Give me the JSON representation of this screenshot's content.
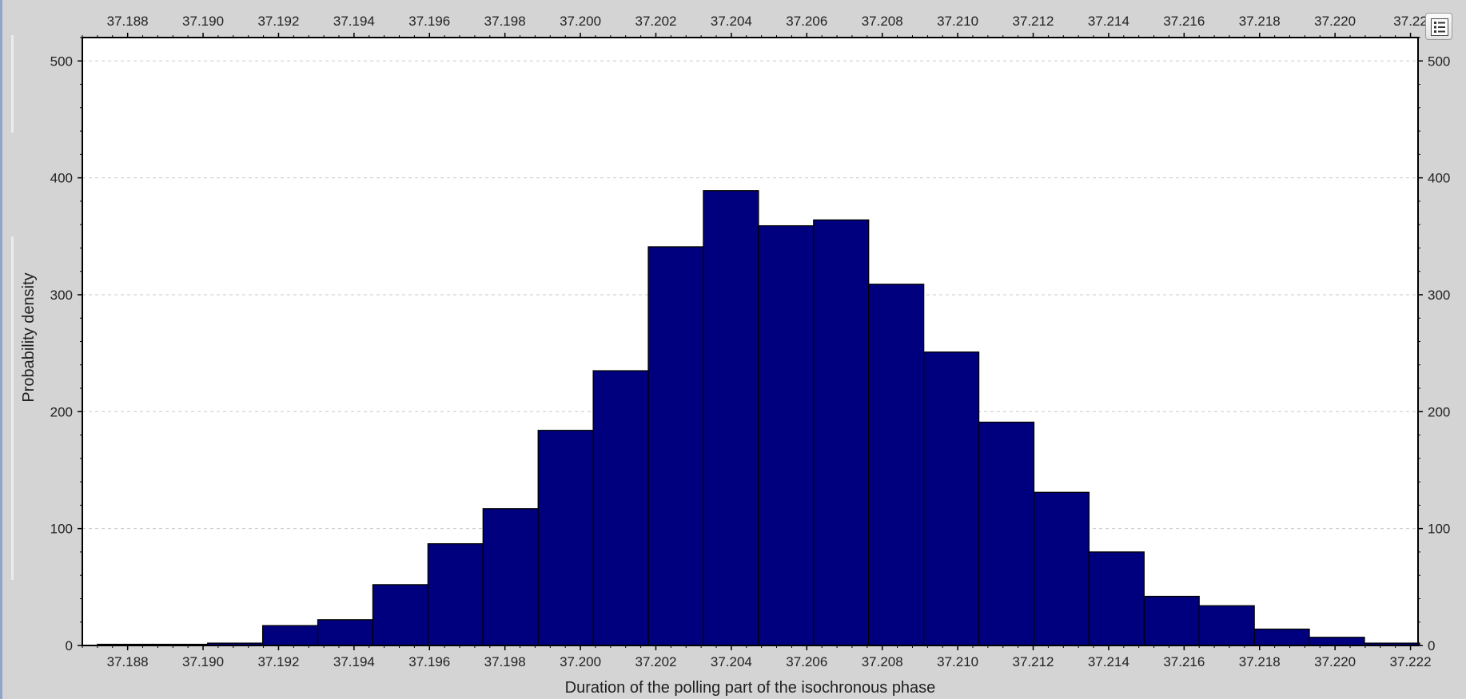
{
  "chart_data": {
    "type": "bar",
    "title": "",
    "xlabel": "Duration of the polling part of the isochronous phase",
    "ylabel": "Probability density",
    "xlim": [
      37.1868,
      37.2222
    ],
    "ylim": [
      0,
      520
    ],
    "x_ticks": [
      "37.188",
      "37.190",
      "37.192",
      "37.194",
      "37.196",
      "37.198",
      "37.200",
      "37.202",
      "37.204",
      "37.206",
      "37.208",
      "37.210",
      "37.212",
      "37.214",
      "37.216",
      "37.218",
      "37.220",
      "37.222"
    ],
    "x_ticks_top": [
      "37.188",
      "37.190",
      "37.192",
      "37.194",
      "37.196",
      "37.198",
      "37.200",
      "37.202",
      "37.204",
      "37.206",
      "37.208",
      "37.210",
      "37.212",
      "37.214",
      "37.216",
      "37.218",
      "37.220",
      "37.22"
    ],
    "y_ticks": [
      "0",
      "100",
      "200",
      "300",
      "400",
      "500"
    ],
    "bin_edges": [
      37.1872,
      37.18866,
      37.19012,
      37.19158,
      37.19304,
      37.1945,
      37.19596,
      37.19742,
      37.19888,
      37.20034,
      37.2018,
      37.20326,
      37.20472,
      37.20618,
      37.20764,
      37.2091,
      37.21056,
      37.21202,
      37.21348,
      37.21494,
      37.2164,
      37.21786,
      37.21932,
      37.22078,
      37.22224
    ],
    "values": [
      1,
      1,
      2,
      17,
      22,
      52,
      87,
      117,
      184,
      235,
      341,
      389,
      359,
      364,
      309,
      251,
      191,
      131,
      80,
      42,
      34,
      14,
      7,
      2
    ],
    "grid": true,
    "bar_color": "#00007f",
    "edge_color": "#000000"
  },
  "toolbar": {
    "legend_icon": "legend-list-icon"
  },
  "colors": {
    "background": "#d4d4d4",
    "plot_background": "#ffffff",
    "grid": "#c8c8c8"
  }
}
